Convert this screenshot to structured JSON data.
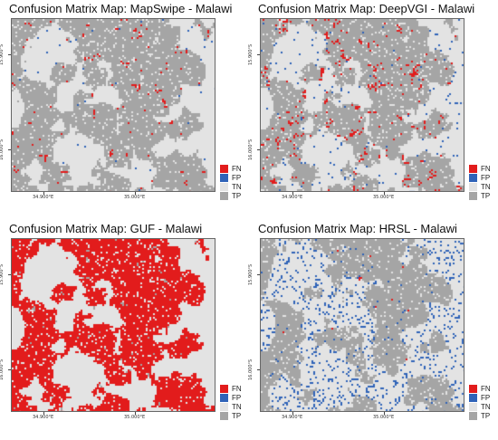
{
  "colors": {
    "FN": "#e21c1c",
    "FP": "#2f63b8",
    "TN": "#e3e3e3",
    "TP": "#a5a5a5"
  },
  "axis": {
    "y_labels": [
      "15.900°S",
      "16.000°S"
    ],
    "x_labels": [
      "34.900°E",
      "35.000°E"
    ]
  },
  "legend": [
    {
      "label": "FN",
      "color": "#e21c1c"
    },
    {
      "label": "FP",
      "color": "#2f63b8"
    },
    {
      "label": "TN",
      "color": "#e3e3e3"
    },
    {
      "label": "TP",
      "color": "#a5a5a5"
    }
  ],
  "panels": [
    {
      "id": "mapswipe",
      "title": "Confusion Matrix Map: MapSwipe - Malawi",
      "class_mix": {
        "TP": 0.38,
        "FN": 0.07,
        "FP": 0.01
      }
    },
    {
      "id": "deepvgi",
      "title": "Confusion Matrix Map: DeepVGI - Malawi",
      "class_mix": {
        "TP": 0.33,
        "FN": 0.1,
        "FP": 0.03
      }
    },
    {
      "id": "guf",
      "title": "Confusion Matrix Map: GUF - Malawi",
      "class_mix": {
        "TP": 0.05,
        "FN": 0.38,
        "FP": 0.0
      }
    },
    {
      "id": "hrsl",
      "title": "Confusion Matrix Map: HRSL - Malawi",
      "class_mix": {
        "TP": 0.34,
        "FN": 0.03,
        "FP": 0.12
      }
    }
  ]
}
